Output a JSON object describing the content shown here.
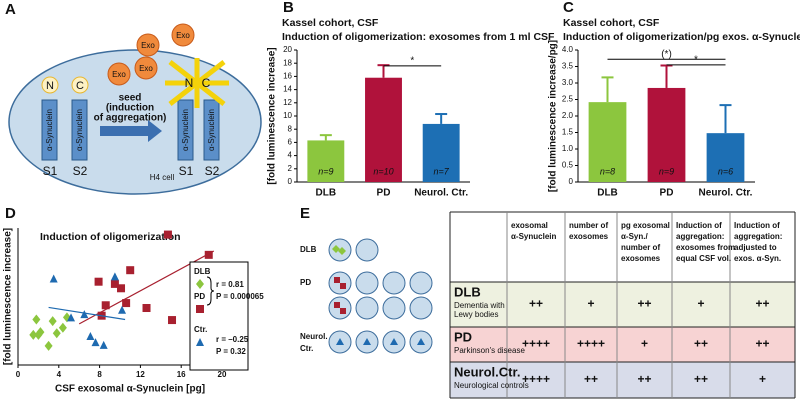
{
  "panel_labels": [
    "A",
    "B",
    "C",
    "D",
    "E"
  ],
  "diagram": {
    "exo": [
      "Exo",
      "Exo",
      "Exo",
      "Exo"
    ],
    "left": {
      "n": "N",
      "c": "C",
      "protein": [
        "α-Synuclein",
        "α-Synuclein"
      ],
      "subunits": [
        "S1",
        "S2"
      ]
    },
    "seed": [
      "seed",
      "(induction",
      "of aggregation)"
    ],
    "right": {
      "n": "N",
      "c": "C",
      "protein": [
        "α-Synuclein",
        "α-Synuclein"
      ],
      "subunits": [
        "S1",
        "S2"
      ]
    },
    "cell": "H4 cell"
  },
  "chart_data": [
    {
      "type": "bar",
      "title": [
        "Kassel cohort, CSF",
        "Induction of oligomerization:  exosomes from 1 ml CSF"
      ],
      "ylabel": "[fold luminescence increase]",
      "categories": [
        "DLB",
        "PD",
        "Neurol. Ctr."
      ],
      "values": [
        6.3,
        15.8,
        8.8
      ],
      "errors": [
        0.8,
        1.9,
        1.5
      ],
      "colors": [
        "#8cc63e",
        "#b0123b",
        "#1d6fb4"
      ],
      "n_labels": [
        "n=9",
        "n=10",
        "n=7"
      ],
      "ylim": [
        0,
        20
      ],
      "yticks": [
        0,
        2,
        4,
        6,
        8,
        10,
        12,
        14,
        16,
        18,
        20
      ],
      "significance": [
        {
          "label": "*",
          "from": 1,
          "to": 2,
          "y": 17.6
        }
      ]
    },
    {
      "type": "bar",
      "title": [
        "Kassel cohort, CSF",
        "Induction of oligomerization/pg exos. α-Synuclein"
      ],
      "ylabel": "[fold luminescence increase/pg]",
      "categories": [
        "DLB",
        "PD",
        "Neurol. Ctr."
      ],
      "values": [
        2.42,
        2.85,
        1.48
      ],
      "errors": [
        0.75,
        0.68,
        0.85
      ],
      "colors": [
        "#8cc63e",
        "#b0123b",
        "#1d6fb4"
      ],
      "n_labels": [
        "n=8",
        "n=9",
        "n=6"
      ],
      "ylim": [
        0,
        4
      ],
      "yticks": [
        0,
        0.5,
        {
          "value": 1,
          "label": "1.0"
        },
        1.5,
        {
          "value": 2,
          "label": "2.0"
        },
        2.5,
        {
          "value": 3,
          "label": "3.0"
        },
        3.5,
        {
          "value": 4,
          "label": "4.0"
        }
      ],
      "significance": [
        {
          "label": "(*)",
          "from": 0,
          "to": 2,
          "y": 3.72
        },
        {
          "label": "*",
          "from": 1,
          "to": 2,
          "y": 3.55
        }
      ]
    },
    {
      "type": "scatter",
      "title": "Induction of oligomerization",
      "xlabel": "CSF exosomal α-Synuclein [pg]",
      "ylabel": "[fold luminescence increase]",
      "xlim": [
        0,
        20
      ],
      "xticks": [
        0,
        4,
        8,
        12,
        16,
        20
      ],
      "ylim": [
        0,
        25
      ],
      "series": [
        {
          "name": "DLB",
          "color": "#8cc63e",
          "marker": "diamond",
          "x": [
            1.5,
            1.8,
            2.0,
            2.2,
            3.0,
            3.4,
            3.8,
            4.4,
            4.8
          ],
          "y": [
            5.5,
            8.3,
            5.5,
            6,
            3.5,
            8,
            5.8,
            6.8,
            8.7
          ]
        },
        {
          "name": "PD",
          "color": "#a8202f",
          "marker": "square",
          "x": [
            7.9,
            8.2,
            8.6,
            9.5,
            10.1,
            10.6,
            11,
            12.6,
            14.7,
            15.1,
            18.7
          ],
          "y": [
            15.2,
            9,
            10.9,
            14.8,
            14,
            11.3,
            17.3,
            10.4,
            23.8,
            8.2,
            20.1
          ],
          "fit_x": [
            6,
            19.2
          ],
          "fit_y": [
            7.5,
            20.8
          ]
        },
        {
          "name": "Ctr.",
          "color": "#1e6ab0",
          "marker": "triangle",
          "x": [
            3.5,
            5.2,
            6.5,
            7.1,
            7.6,
            8.4,
            9.5,
            10.2
          ],
          "y": [
            15.6,
            8.5,
            9.1,
            5.1,
            4,
            3.5,
            16,
            9.9
          ],
          "fit_x": [
            3,
            10.5
          ],
          "fit_y": [
            10.5,
            8.3
          ]
        }
      ],
      "stats": [
        {
          "r": "r = 0.81",
          "p": "P = 0.000065"
        },
        {
          "r": "r = –0.25",
          "p": "P = 0.32"
        }
      ]
    }
  ],
  "table": {
    "icon_labels": [
      [
        "DLB"
      ],
      [
        "PD"
      ],
      [
        "Neurol.",
        "Ctr."
      ]
    ],
    "columns": [
      [
        "exosomal",
        "α-Synuclein"
      ],
      [
        "number of",
        "exosomes"
      ],
      [
        "pg exosomal",
        "α-Syn./",
        "number of",
        "exosomes"
      ],
      [
        "Induction of",
        "aggregation:",
        "exosomes from",
        "equal CSF vol."
      ],
      [
        "Induction of",
        "aggregation:",
        "adjusted to",
        "exos. α-Syn."
      ]
    ],
    "rows": [
      {
        "name": "DLB",
        "description": [
          "Dementia with",
          "Lewy bodies"
        ],
        "cells": [
          "++",
          "+",
          "++",
          "+",
          "++"
        ]
      },
      {
        "name": "PD",
        "description": [
          "Parkinson's disease"
        ],
        "cells": [
          "++++",
          "++++",
          "+",
          "++",
          "++"
        ]
      },
      {
        "name": "Neurol.Ctr.",
        "description": [
          "Neurological controls"
        ],
        "cells": [
          "++++",
          "++",
          "++",
          "++",
          "+"
        ]
      }
    ]
  }
}
